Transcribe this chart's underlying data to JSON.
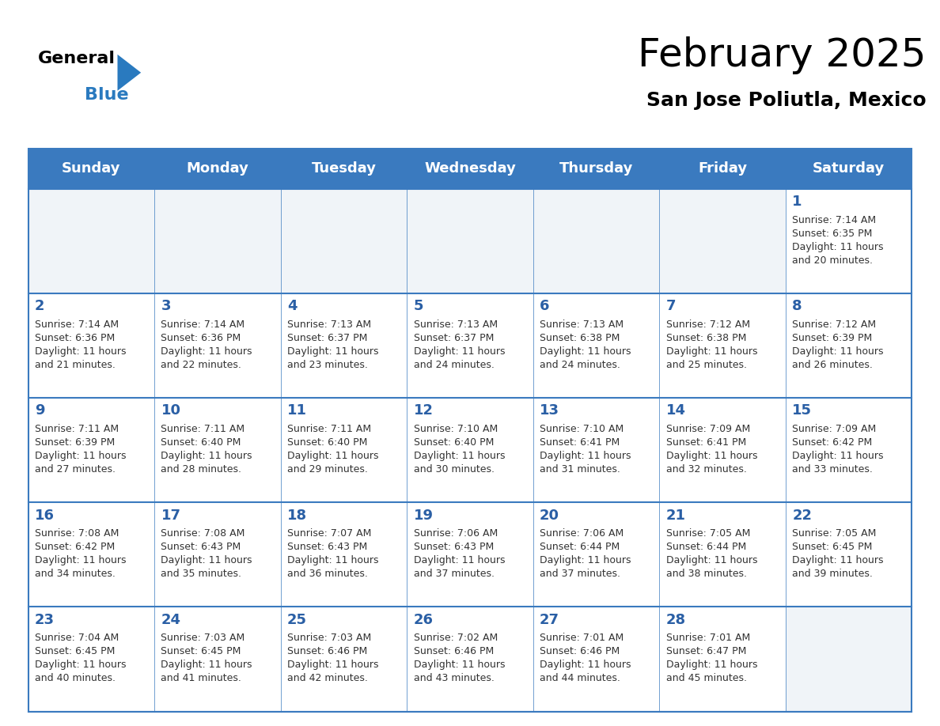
{
  "title": "February 2025",
  "subtitle": "San Jose Poliutla, Mexico",
  "header_bg_color": "#3a7abf",
  "header_text_color": "#ffffff",
  "cell_bg_color": "#ffffff",
  "empty_cell_bg_color": "#f0f4f8",
  "day_number_color": "#2a5fa5",
  "info_text_color": "#333333",
  "border_color": "#3a7abf",
  "days_of_week": [
    "Sunday",
    "Monday",
    "Tuesday",
    "Wednesday",
    "Thursday",
    "Friday",
    "Saturday"
  ],
  "weeks": [
    [
      {
        "day": null,
        "info": null
      },
      {
        "day": null,
        "info": null
      },
      {
        "day": null,
        "info": null
      },
      {
        "day": null,
        "info": null
      },
      {
        "day": null,
        "info": null
      },
      {
        "day": null,
        "info": null
      },
      {
        "day": 1,
        "info": "Sunrise: 7:14 AM\nSunset: 6:35 PM\nDaylight: 11 hours\nand 20 minutes."
      }
    ],
    [
      {
        "day": 2,
        "info": "Sunrise: 7:14 AM\nSunset: 6:36 PM\nDaylight: 11 hours\nand 21 minutes."
      },
      {
        "day": 3,
        "info": "Sunrise: 7:14 AM\nSunset: 6:36 PM\nDaylight: 11 hours\nand 22 minutes."
      },
      {
        "day": 4,
        "info": "Sunrise: 7:13 AM\nSunset: 6:37 PM\nDaylight: 11 hours\nand 23 minutes."
      },
      {
        "day": 5,
        "info": "Sunrise: 7:13 AM\nSunset: 6:37 PM\nDaylight: 11 hours\nand 24 minutes."
      },
      {
        "day": 6,
        "info": "Sunrise: 7:13 AM\nSunset: 6:38 PM\nDaylight: 11 hours\nand 24 minutes."
      },
      {
        "day": 7,
        "info": "Sunrise: 7:12 AM\nSunset: 6:38 PM\nDaylight: 11 hours\nand 25 minutes."
      },
      {
        "day": 8,
        "info": "Sunrise: 7:12 AM\nSunset: 6:39 PM\nDaylight: 11 hours\nand 26 minutes."
      }
    ],
    [
      {
        "day": 9,
        "info": "Sunrise: 7:11 AM\nSunset: 6:39 PM\nDaylight: 11 hours\nand 27 minutes."
      },
      {
        "day": 10,
        "info": "Sunrise: 7:11 AM\nSunset: 6:40 PM\nDaylight: 11 hours\nand 28 minutes."
      },
      {
        "day": 11,
        "info": "Sunrise: 7:11 AM\nSunset: 6:40 PM\nDaylight: 11 hours\nand 29 minutes."
      },
      {
        "day": 12,
        "info": "Sunrise: 7:10 AM\nSunset: 6:40 PM\nDaylight: 11 hours\nand 30 minutes."
      },
      {
        "day": 13,
        "info": "Sunrise: 7:10 AM\nSunset: 6:41 PM\nDaylight: 11 hours\nand 31 minutes."
      },
      {
        "day": 14,
        "info": "Sunrise: 7:09 AM\nSunset: 6:41 PM\nDaylight: 11 hours\nand 32 minutes."
      },
      {
        "day": 15,
        "info": "Sunrise: 7:09 AM\nSunset: 6:42 PM\nDaylight: 11 hours\nand 33 minutes."
      }
    ],
    [
      {
        "day": 16,
        "info": "Sunrise: 7:08 AM\nSunset: 6:42 PM\nDaylight: 11 hours\nand 34 minutes."
      },
      {
        "day": 17,
        "info": "Sunrise: 7:08 AM\nSunset: 6:43 PM\nDaylight: 11 hours\nand 35 minutes."
      },
      {
        "day": 18,
        "info": "Sunrise: 7:07 AM\nSunset: 6:43 PM\nDaylight: 11 hours\nand 36 minutes."
      },
      {
        "day": 19,
        "info": "Sunrise: 7:06 AM\nSunset: 6:43 PM\nDaylight: 11 hours\nand 37 minutes."
      },
      {
        "day": 20,
        "info": "Sunrise: 7:06 AM\nSunset: 6:44 PM\nDaylight: 11 hours\nand 37 minutes."
      },
      {
        "day": 21,
        "info": "Sunrise: 7:05 AM\nSunset: 6:44 PM\nDaylight: 11 hours\nand 38 minutes."
      },
      {
        "day": 22,
        "info": "Sunrise: 7:05 AM\nSunset: 6:45 PM\nDaylight: 11 hours\nand 39 minutes."
      }
    ],
    [
      {
        "day": 23,
        "info": "Sunrise: 7:04 AM\nSunset: 6:45 PM\nDaylight: 11 hours\nand 40 minutes."
      },
      {
        "day": 24,
        "info": "Sunrise: 7:03 AM\nSunset: 6:45 PM\nDaylight: 11 hours\nand 41 minutes."
      },
      {
        "day": 25,
        "info": "Sunrise: 7:03 AM\nSunset: 6:46 PM\nDaylight: 11 hours\nand 42 minutes."
      },
      {
        "day": 26,
        "info": "Sunrise: 7:02 AM\nSunset: 6:46 PM\nDaylight: 11 hours\nand 43 minutes."
      },
      {
        "day": 27,
        "info": "Sunrise: 7:01 AM\nSunset: 6:46 PM\nDaylight: 11 hours\nand 44 minutes."
      },
      {
        "day": 28,
        "info": "Sunrise: 7:01 AM\nSunset: 6:47 PM\nDaylight: 11 hours\nand 45 minutes."
      },
      {
        "day": null,
        "info": null
      }
    ]
  ],
  "logo_triangle_color": "#2a7abf",
  "title_fontsize": 36,
  "subtitle_fontsize": 18,
  "header_fontsize": 13,
  "day_number_fontsize": 13,
  "info_fontsize": 9
}
